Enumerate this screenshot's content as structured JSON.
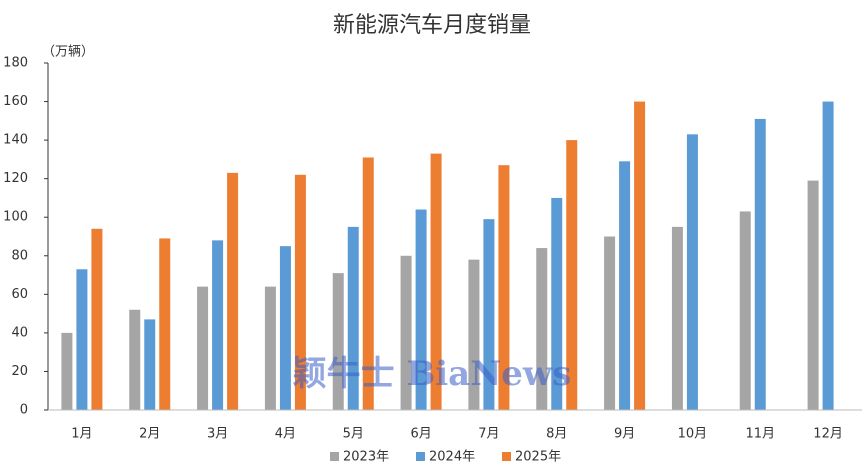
{
  "chart_data": {
    "type": "bar",
    "title": "新能源汽车月度销量",
    "y_unit": "（万辆）",
    "watermark": "颖牛士 BiaNews",
    "categories": [
      "1月",
      "2月",
      "3月",
      "4月",
      "5月",
      "6月",
      "7月",
      "8月",
      "9月",
      "10月",
      "11月",
      "12月"
    ],
    "series": [
      {
        "name": "2023年",
        "color": "#a5a5a5",
        "values": [
          40,
          52,
          64,
          64,
          71,
          80,
          78,
          84,
          90,
          95,
          103,
          119
        ]
      },
      {
        "name": "2024年",
        "color": "#5b9bd5",
        "values": [
          73,
          47,
          88,
          85,
          95,
          104,
          99,
          110,
          129,
          143,
          151,
          160
        ]
      },
      {
        "name": "2025年",
        "color": "#ed7d31",
        "values": [
          94,
          89,
          123,
          122,
          131,
          133,
          127,
          140,
          160,
          null,
          null,
          null
        ]
      }
    ],
    "ylim": [
      0,
      180
    ],
    "yticks": [
      0,
      20,
      40,
      60,
      80,
      100,
      120,
      140,
      160,
      180
    ],
    "legend": "bottom"
  }
}
